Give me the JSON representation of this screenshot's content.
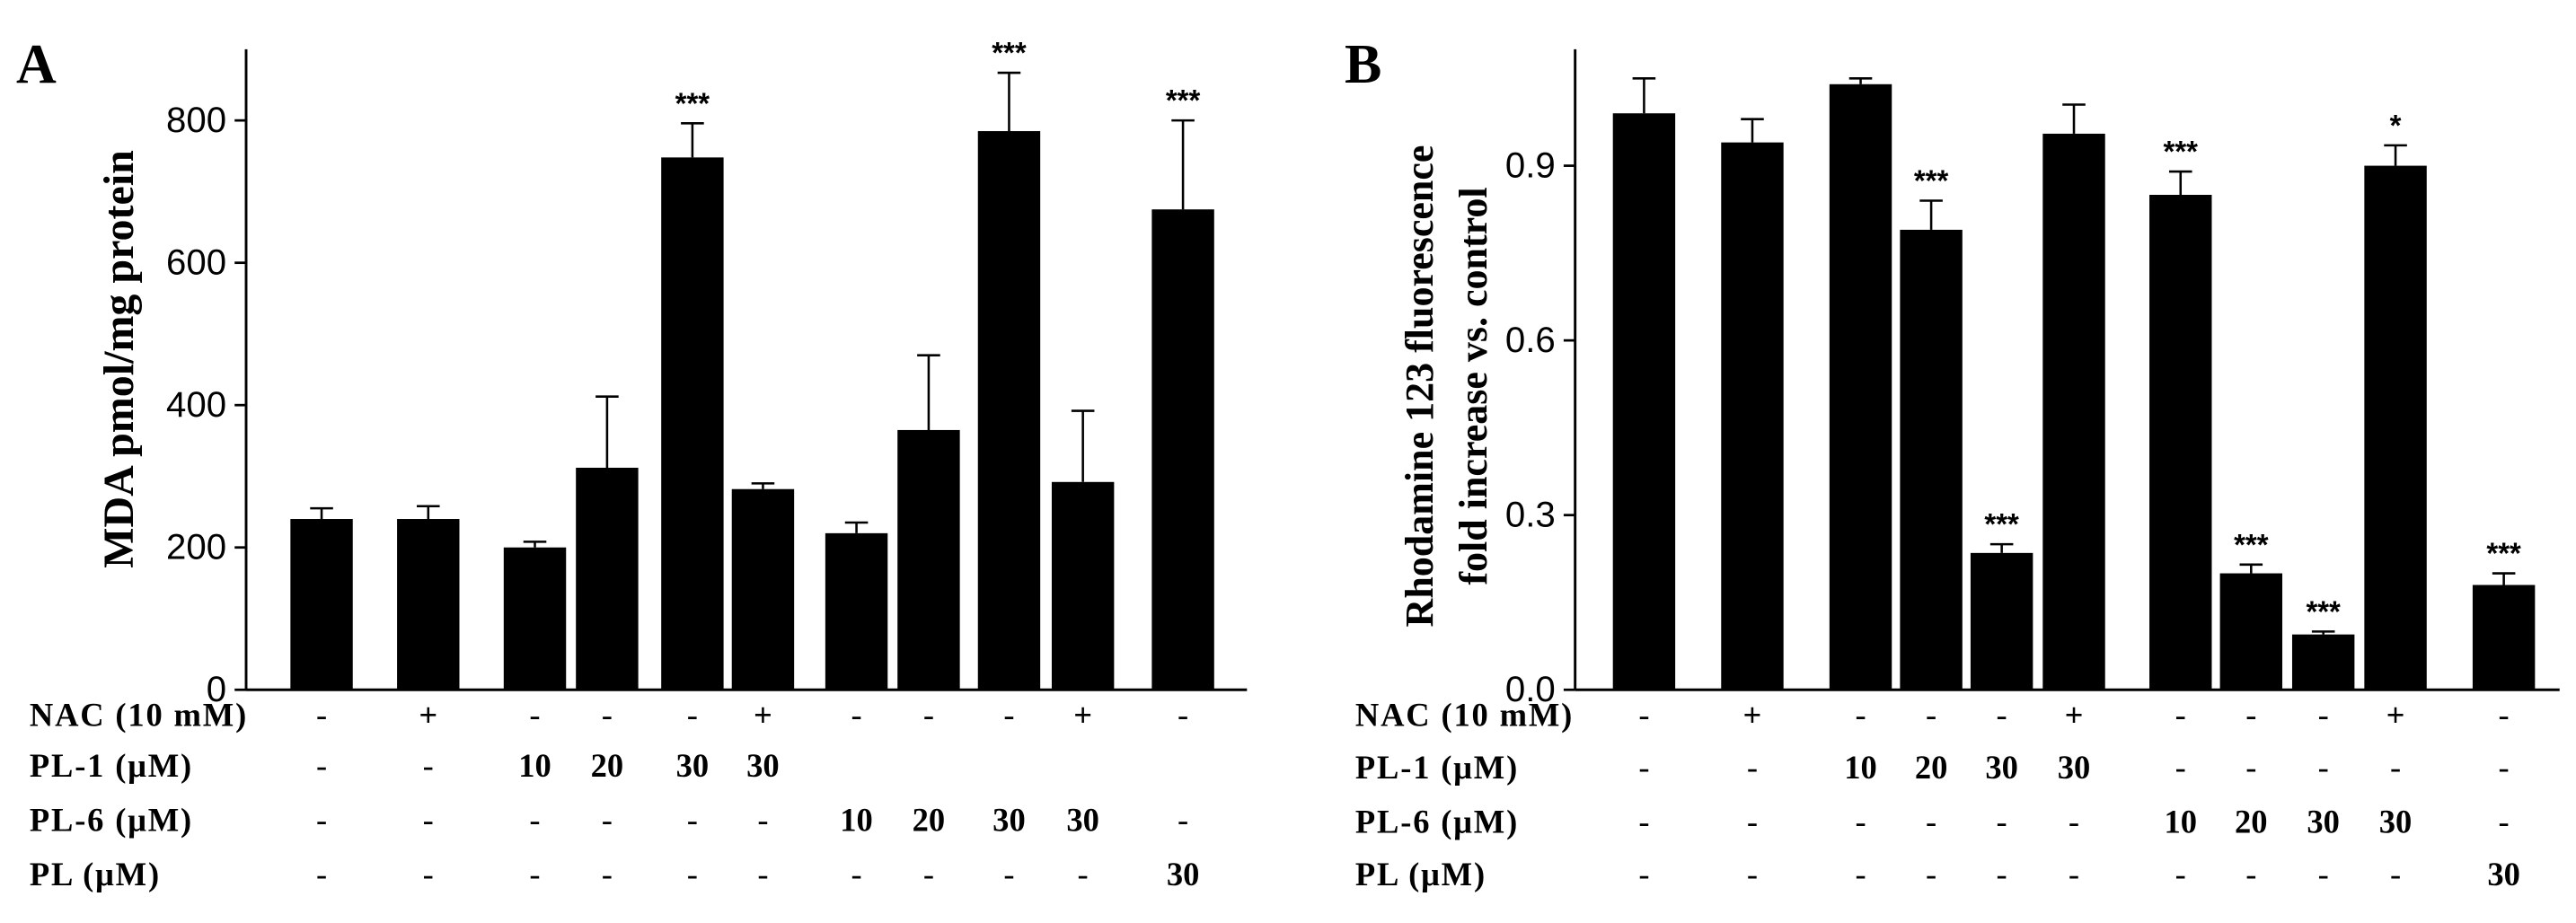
{
  "chart_data": [
    {
      "type": "bar",
      "panel_label": "A",
      "title": "",
      "xlabel": "",
      "ylabel": "MDA pmol/mg protein",
      "ylim": [
        0,
        900
      ],
      "yticks": [
        "0",
        "200",
        "400",
        "600",
        "800"
      ],
      "ytick_values": [
        0,
        200,
        400,
        600,
        800
      ],
      "bar_color": "#000000",
      "groups": [
        {
          "values": [
            240,
            240
          ]
        },
        {
          "values": [
            200,
            312,
            748,
            282
          ]
        },
        {
          "values": [
            220,
            365,
            785,
            292
          ]
        },
        {
          "values": [
            675
          ]
        }
      ],
      "errors": [
        {
          "values": [
            15,
            18
          ]
        },
        {
          "values": [
            8,
            100,
            48,
            8
          ]
        },
        {
          "values": [
            15,
            105,
            82,
            100
          ]
        },
        {
          "values": [
            125
          ]
        }
      ],
      "significance": [
        {
          "values": [
            "",
            ""
          ]
        },
        {
          "values": [
            "",
            "",
            "***",
            ""
          ]
        },
        {
          "values": [
            "",
            "",
            "***",
            ""
          ]
        },
        {
          "values": [
            "***"
          ]
        }
      ],
      "condition_rows": [
        {
          "label": "NAC (10 mM)",
          "cells": [
            "-",
            "+",
            "-",
            "-",
            "-",
            "+",
            "-",
            "-",
            "-",
            "+",
            "-"
          ]
        },
        {
          "label": "PL-1 (μM)",
          "cells": [
            "-",
            "-",
            "10",
            "20",
            "30",
            "30",
            "",
            "",
            "",
            "",
            ""
          ]
        },
        {
          "label": "PL-6 (μM)",
          "cells": [
            "-",
            "-",
            "-",
            "-",
            "-",
            "-",
            "10",
            "20",
            "30",
            "30",
            "-"
          ]
        },
        {
          "label": "PL (μM)",
          "cells": [
            "-",
            "-",
            "-",
            "-",
            "-",
            "-",
            "-",
            "-",
            "-",
            "-",
            "30"
          ]
        }
      ]
    },
    {
      "type": "bar",
      "panel_label": "B",
      "title": "",
      "xlabel": "",
      "ylabel_lines": [
        "Rhodamine 123 fluorescence",
        "fold increase vs. control"
      ],
      "ylim": [
        0,
        1.1
      ],
      "yticks": [
        "0.0",
        "0.3",
        "0.6",
        "0.9"
      ],
      "ytick_values": [
        0,
        0.3,
        0.6,
        0.9
      ],
      "bar_color": "#000000",
      "groups": [
        {
          "values": [
            0.99,
            0.94
          ]
        },
        {
          "values": [
            1.04,
            0.79,
            0.235,
            0.955
          ]
        },
        {
          "values": [
            0.85,
            0.2,
            0.095,
            0.9
          ]
        },
        {
          "values": [
            0.18
          ]
        }
      ],
      "errors": [
        {
          "values": [
            0.06,
            0.04
          ]
        },
        {
          "values": [
            0.01,
            0.05,
            0.015,
            0.05
          ]
        },
        {
          "values": [
            0.04,
            0.015,
            0.005,
            0.035
          ]
        },
        {
          "values": [
            0.02
          ]
        }
      ],
      "significance": [
        {
          "values": [
            "",
            ""
          ]
        },
        {
          "values": [
            "",
            "***",
            "***",
            ""
          ]
        },
        {
          "values": [
            "***",
            "***",
            "***",
            "*"
          ]
        },
        {
          "values": [
            "***"
          ]
        }
      ],
      "condition_rows": [
        {
          "label": "NAC (10 mM)",
          "cells": [
            "-",
            "+",
            "-",
            "-",
            "-",
            "+",
            "-",
            "-",
            "-",
            "+",
            "-"
          ]
        },
        {
          "label": "PL-1 (μM)",
          "cells": [
            "-",
            "-",
            "10",
            "20",
            "30",
            "30",
            "-",
            "-",
            "-",
            "-",
            "-"
          ]
        },
        {
          "label": "PL-6 (μM)",
          "cells": [
            "-",
            "-",
            "-",
            "-",
            "-",
            "-",
            "10",
            "20",
            "30",
            "30",
            "-"
          ]
        },
        {
          "label": "PL (μM)",
          "cells": [
            "-",
            "-",
            "-",
            "-",
            "-",
            "-",
            "-",
            "-",
            "-",
            "-",
            "30"
          ]
        }
      ]
    }
  ]
}
